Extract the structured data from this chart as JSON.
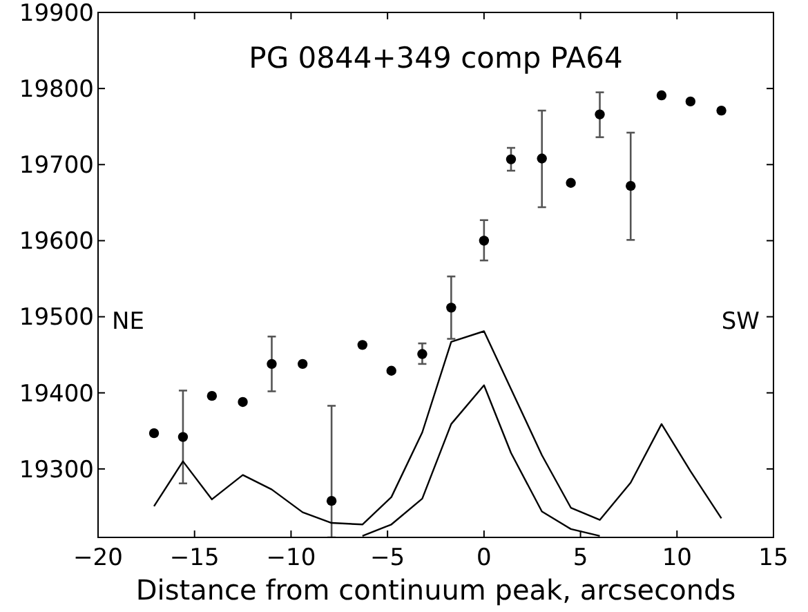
{
  "chart_data": {
    "type": "scatter",
    "title": "PG 0844+349 comp PA64",
    "xlabel": "Distance from continuum peak, arcseconds",
    "xlim": [
      -20,
      15
    ],
    "ylim": [
      19210,
      19900
    ],
    "xticks": [
      {
        "value": -20,
        "label": "−20"
      },
      {
        "value": -15,
        "label": "−15"
      },
      {
        "value": -10,
        "label": "−10"
      },
      {
        "value": -5,
        "label": "−5"
      },
      0,
      5,
      10,
      15
    ],
    "yticks": [
      19300,
      19400,
      19500,
      19600,
      19700,
      19800,
      19900
    ],
    "grid": false,
    "annotations": [
      "NE",
      "SW"
    ],
    "series": [
      {
        "color": "#000000",
        "marker": "circle",
        "x": [
          -17.1,
          -15.6,
          -14.1,
          -12.5,
          -11.0,
          -9.4,
          -7.9,
          -6.3,
          -4.8,
          -3.2,
          -1.7,
          0,
          1.4,
          3.0,
          4.5,
          6.0,
          7.6,
          9.2,
          10.7,
          12.3
        ],
        "values": [
          19347,
          19342,
          19396,
          19388,
          19438,
          19438,
          19258,
          19463,
          19429,
          19451,
          19512,
          19600,
          19707,
          19708,
          19676,
          19766,
          19672,
          19791,
          19783,
          19771
        ],
        "errors": [
          null,
          [
            19281,
            19403
          ],
          null,
          null,
          [
            19402,
            19474
          ],
          null,
          [
            19210,
            19383
          ],
          null,
          null,
          [
            19438,
            19465
          ],
          [
            19471,
            19553
          ],
          [
            19574,
            19627
          ],
          [
            19692,
            19722
          ],
          [
            19644,
            19771
          ],
          null,
          [
            19736,
            19795
          ],
          [
            19601,
            19742
          ],
          null,
          null,
          null
        ]
      },
      {
        "type": "line",
        "color": "#000000",
        "marker": "none",
        "line_style": "solid",
        "x": [
          -17.1,
          -15.6,
          -14.1,
          -12.5,
          -11.0,
          -9.4,
          -7.9,
          -6.3,
          -4.8,
          -3.2,
          -1.7,
          0,
          1.4,
          3.0,
          4.5,
          6.0,
          7.6,
          9.2,
          10.7,
          12.3
        ],
        "values": [
          19251,
          19310,
          19260,
          19292,
          19273,
          19243,
          19229,
          19227,
          19263,
          19348,
          19467,
          19481,
          19405,
          19318,
          19249,
          19233,
          19282,
          19359,
          19297,
          19235
        ]
      },
      {
        "type": "line",
        "color": "#000000",
        "marker": "none",
        "line_style": "solid",
        "x": [
          -6.3,
          -4.8,
          -3.2,
          -1.7,
          0,
          1.4,
          3.0,
          4.5,
          6.0
        ],
        "values": [
          19212,
          19227,
          19261,
          19359,
          19410,
          19321,
          19244,
          19221,
          19212
        ]
      }
    ]
  }
}
